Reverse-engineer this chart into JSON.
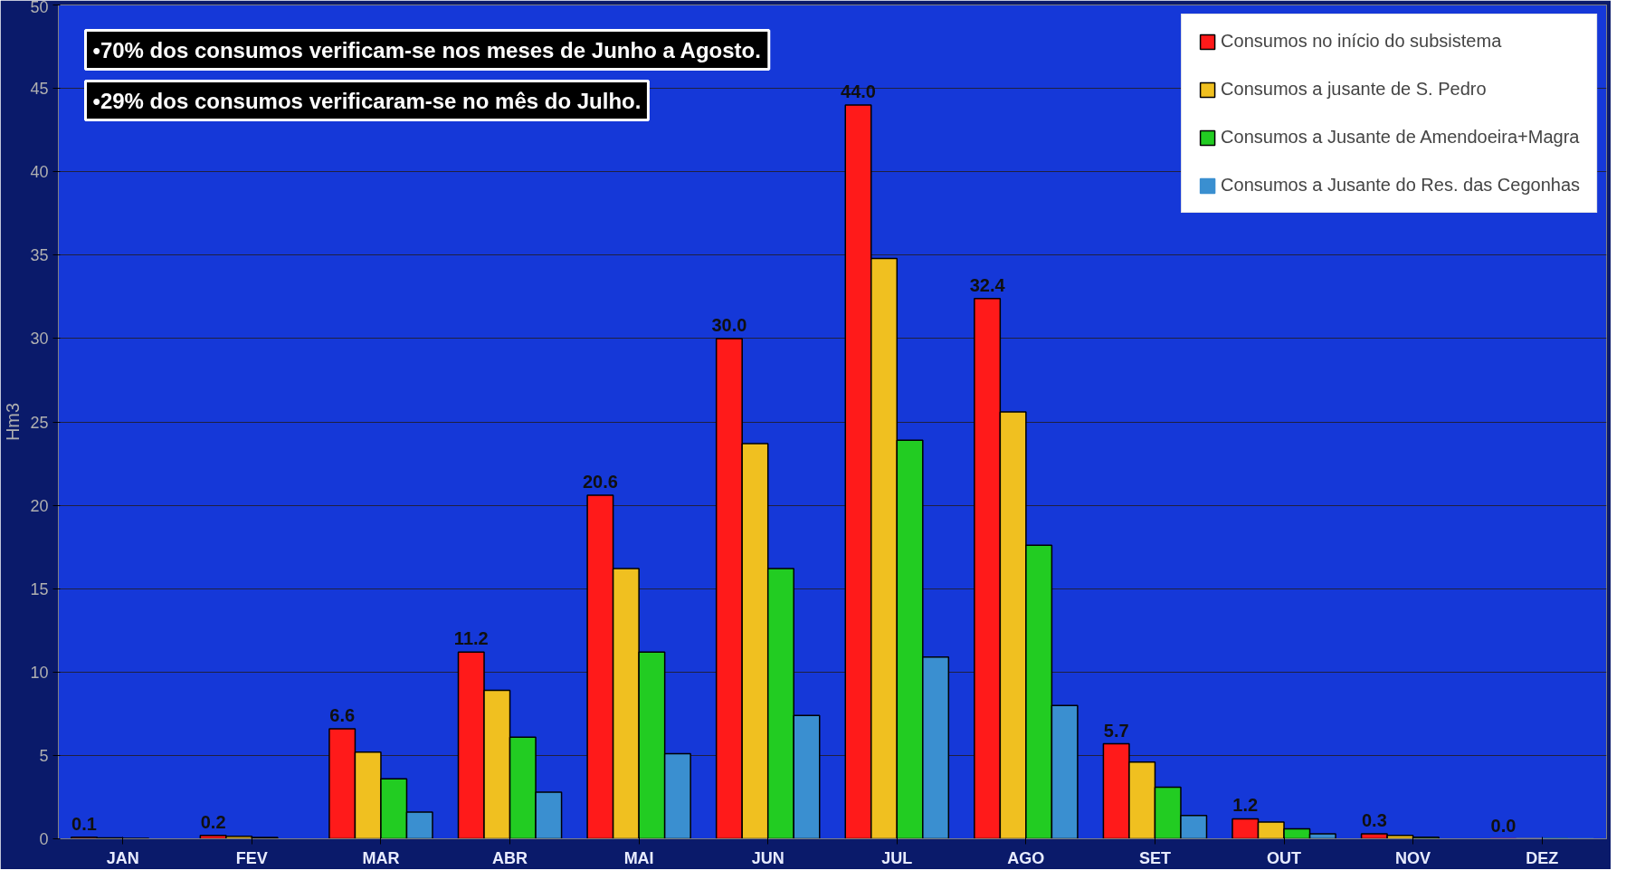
{
  "chart_data": {
    "type": "bar",
    "ylabel": "Hm3",
    "categories": [
      "JAN",
      "FEV",
      "MAR",
      "ABR",
      "MAI",
      "JUN",
      "JUL",
      "AGO",
      "SET",
      "OUT",
      "NOV",
      "DEZ"
    ],
    "series": [
      {
        "name": "Consumos no início do subsistema",
        "color": "#ff1a1a",
        "values": [
          0.1,
          0.2,
          6.6,
          11.2,
          20.6,
          30.0,
          44.0,
          32.4,
          5.7,
          1.2,
          0.3,
          0.0
        ],
        "value_labels": [
          "0.1",
          "0.2",
          "6.6",
          "11.2",
          "20.6",
          "30.0",
          "44.0",
          "32.4",
          "5.7",
          "1.2",
          "0.3",
          "0.0"
        ]
      },
      {
        "name": "Consumos a jusante de S. Pedro",
        "color": "#f0c020",
        "values": [
          0.05,
          0.15,
          5.2,
          8.9,
          16.2,
          23.7,
          34.8,
          25.6,
          4.6,
          1.0,
          0.2,
          0.0
        ]
      },
      {
        "name": "Consumos a Jusante de Amendoeira+Magra",
        "color": "#22cc22",
        "values": [
          0.03,
          0.08,
          3.6,
          6.1,
          11.2,
          16.2,
          23.9,
          17.6,
          3.1,
          0.6,
          0.1,
          0.0
        ]
      },
      {
        "name": "Consumos a Jusante do Res. das Cegonhas",
        "color": "#3a8fd0",
        "values": [
          null,
          null,
          1.6,
          2.8,
          5.1,
          7.4,
          10.9,
          8.0,
          1.4,
          0.3,
          null,
          0.0
        ]
      }
    ],
    "ylim": [
      0,
      50
    ],
    "yticks": [
      0,
      5,
      10,
      15,
      20,
      25,
      30,
      35,
      40,
      45,
      50
    ],
    "grid": "y",
    "legend": "top right",
    "annotations": [
      "•70% dos consumos verificam-se nos meses de Junho a Agosto.",
      "•29% dos consumos verificaram-se no mês do Julho."
    ]
  }
}
